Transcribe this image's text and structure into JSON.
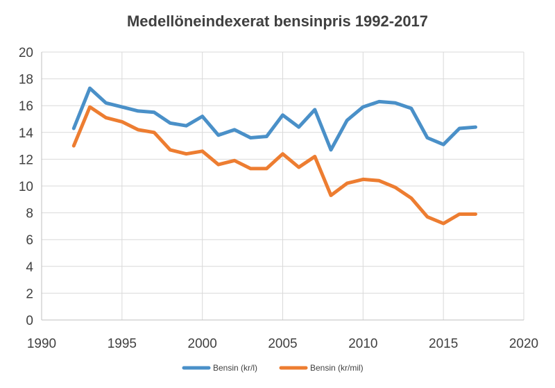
{
  "chart_data": {
    "type": "line",
    "title": "Medellöneindexerat  bensinpris  1992-2017",
    "xlabel": "",
    "ylabel": "",
    "xlim": [
      1990,
      2020
    ],
    "ylim": [
      0,
      20
    ],
    "x_ticks": [
      1990,
      1995,
      2000,
      2005,
      2010,
      2015,
      2020
    ],
    "y_ticks": [
      0,
      2,
      4,
      6,
      8,
      10,
      12,
      14,
      16,
      18,
      20
    ],
    "grid": true,
    "legend_position": "bottom",
    "x": [
      1992,
      1993,
      1994,
      1995,
      1996,
      1997,
      1998,
      1999,
      2000,
      2001,
      2002,
      2003,
      2004,
      2005,
      2006,
      2007,
      2008,
      2009,
      2010,
      2011,
      2012,
      2013,
      2014,
      2015,
      2016,
      2017
    ],
    "series": [
      {
        "name": "Bensin (kr/l)",
        "color": "#4a90c8",
        "values": [
          14.3,
          17.3,
          16.2,
          15.9,
          15.6,
          15.5,
          14.7,
          14.5,
          15.2,
          13.8,
          14.2,
          13.6,
          13.7,
          15.3,
          14.4,
          15.7,
          12.7,
          14.9,
          15.9,
          16.3,
          16.2,
          15.8,
          13.6,
          13.1,
          14.3,
          14.4
        ]
      },
      {
        "name": "Bensin (kr/mil)",
        "color": "#ed7d31",
        "values": [
          13.0,
          15.9,
          15.1,
          14.8,
          14.2,
          14.0,
          12.7,
          12.4,
          12.6,
          11.6,
          11.9,
          11.3,
          11.3,
          12.4,
          11.4,
          12.2,
          9.3,
          10.2,
          10.5,
          10.4,
          9.9,
          9.1,
          7.7,
          7.2,
          7.9,
          7.9
        ]
      }
    ]
  }
}
